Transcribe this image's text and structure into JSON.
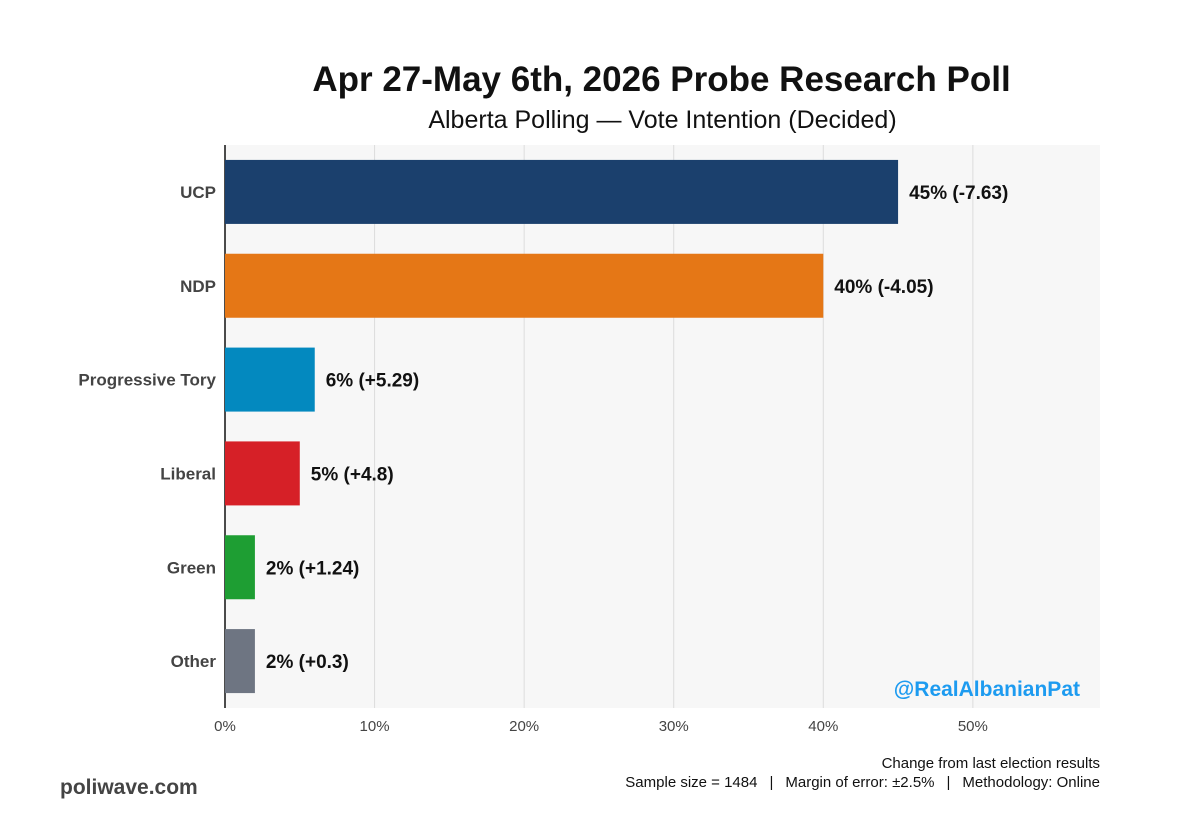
{
  "chart_data": {
    "type": "bar",
    "orientation": "horizontal",
    "title": "Apr 27-May 6th, 2026 Probe Research Poll",
    "subtitle": "Alberta Polling — Vote Intention (Decided)",
    "categories": [
      "UCP",
      "NDP",
      "Progressive Tory",
      "Liberal",
      "Green",
      "Other"
    ],
    "values": [
      45,
      40,
      6,
      5,
      2,
      2
    ],
    "changes": [
      "-7.63",
      "-4.05",
      "+5.29",
      "+4.8",
      "+1.24",
      "+0.3"
    ],
    "data_labels": [
      "45% (-7.63)",
      "40% (-4.05)",
      "6% (+5.29)",
      "5% (+4.8)",
      "2% (+1.24)",
      "2% (+0.3)"
    ],
    "colors": [
      "#1b406d",
      "#e57716",
      "#0389bf",
      "#d62027",
      "#1e9e33",
      "#6e7582"
    ],
    "xlim": [
      0,
      58.5
    ],
    "xticks": [
      0,
      10,
      20,
      30,
      40,
      50
    ],
    "xtick_labels": [
      "0%",
      "10%",
      "20%",
      "30%",
      "40%",
      "50%"
    ],
    "grid": true,
    "watermark": "@RealAlbanianPat",
    "watermark_color": "#1d9bf0",
    "plot_background": "#f7f7f7",
    "grid_color": "#dcdcdc"
  },
  "footer": {
    "note": "Change from last election results",
    "sample": "Sample size = 1484",
    "divider": "|",
    "margin": "Margin of error: ±2.5%",
    "method": "Methodology: Online",
    "brand": "poliwave.com"
  }
}
